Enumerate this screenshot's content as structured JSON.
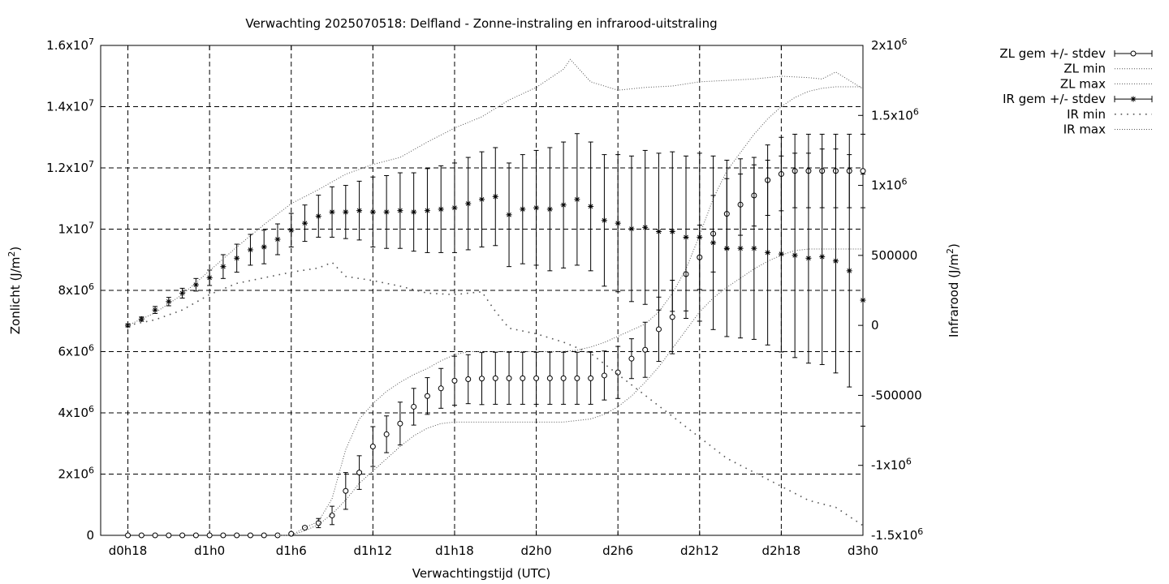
{
  "chart_data": {
    "type": "line",
    "title": "Verwachting 2025070518: Delfland - Zonne-instraling en infrarood-uitstraling",
    "xlabel": "Verwachtingstijd (UTC)",
    "ylabel_left": {
      "main": "Zonlicht (J/m",
      "sup": "2",
      "end": ")"
    },
    "ylabel_right": {
      "main": "Infrarood (J/m",
      "sup": "2",
      "end": ")"
    },
    "x_range_hours": [
      16,
      72
    ],
    "x_ticks": [
      {
        "h": 18,
        "label": "d0h18"
      },
      {
        "h": 24,
        "label": "d1h0"
      },
      {
        "h": 30,
        "label": "d1h6"
      },
      {
        "h": 36,
        "label": "d1h12"
      },
      {
        "h": 42,
        "label": "d1h18"
      },
      {
        "h": 48,
        "label": "d2h0"
      },
      {
        "h": 54,
        "label": "d2h6"
      },
      {
        "h": 60,
        "label": "d2h12"
      },
      {
        "h": 66,
        "label": "d2h18"
      },
      {
        "h": 72,
        "label": "d3h0"
      }
    ],
    "y_left_range": [
      0,
      16000000
    ],
    "y_left_ticks": [
      {
        "v": 0,
        "label": "0",
        "exp": ""
      },
      {
        "v": 2000000,
        "label": "2x10",
        "exp": "6"
      },
      {
        "v": 4000000,
        "label": "4x10",
        "exp": "6"
      },
      {
        "v": 6000000,
        "label": "6x10",
        "exp": "6"
      },
      {
        "v": 8000000,
        "label": "8x10",
        "exp": "6"
      },
      {
        "v": 10000000,
        "label": "1x10",
        "exp": "7"
      },
      {
        "v": 12000000,
        "label": "1.2x10",
        "exp": "7"
      },
      {
        "v": 14000000,
        "label": "1.4x10",
        "exp": "7"
      },
      {
        "v": 16000000,
        "label": "1.6x10",
        "exp": "7"
      }
    ],
    "y_right_range": [
      -1500000,
      2000000
    ],
    "y_right_ticks": [
      {
        "v": -1500000,
        "label": "-1.5x10",
        "exp": "6"
      },
      {
        "v": -1000000,
        "label": "-1x10",
        "exp": "6"
      },
      {
        "v": -500000,
        "label": "-500000",
        "exp": ""
      },
      {
        "v": 0,
        "label": "0",
        "exp": ""
      },
      {
        "v": 500000,
        "label": "500000",
        "exp": ""
      },
      {
        "v": 1000000,
        "label": "1x10",
        "exp": "6"
      },
      {
        "v": 1500000,
        "label": "1.5x10",
        "exp": "6"
      },
      {
        "v": 2000000,
        "label": "2x10",
        "exp": "6"
      }
    ],
    "grid": true,
    "legend_position": "outside-right",
    "series": [
      {
        "name": "ZL gem +/- stdev",
        "axis": "left",
        "style": "errorbar-circle",
        "x": [
          18,
          19,
          20,
          21,
          22,
          23,
          24,
          25,
          26,
          27,
          28,
          29,
          30,
          31,
          32,
          33,
          34,
          35,
          36,
          37,
          38,
          39,
          40,
          41,
          42,
          43,
          44,
          45,
          46,
          47,
          48,
          49,
          50,
          51,
          52,
          53,
          54,
          55,
          56,
          57,
          58,
          59,
          60,
          61,
          62,
          63,
          64,
          65,
          66,
          67,
          68,
          69,
          70,
          71,
          72
        ],
        "y": [
          0,
          0,
          0,
          0,
          0,
          0,
          0,
          0,
          0,
          0,
          0,
          0,
          50000,
          250000,
          400000,
          650000,
          1450000,
          2050000,
          2900000,
          3300000,
          3650000,
          4200000,
          4550000,
          4800000,
          5050000,
          5100000,
          5120000,
          5130000,
          5130000,
          5130000,
          5130000,
          5130000,
          5130000,
          5130000,
          5130000,
          5220000,
          5320000,
          5770000,
          6060000,
          6730000,
          7130000,
          8530000,
          9080000,
          9850000,
          10500000,
          10800000,
          11100000,
          11600000,
          11800000,
          11900000,
          11900000,
          11900000,
          11900000,
          11900000,
          11900000
        ],
        "err": [
          0,
          0,
          0,
          0,
          0,
          0,
          0,
          0,
          0,
          0,
          0,
          0,
          30000,
          50000,
          150000,
          300000,
          600000,
          550000,
          650000,
          600000,
          700000,
          600000,
          600000,
          650000,
          800000,
          800000,
          850000,
          850000,
          850000,
          850000,
          850000,
          850000,
          850000,
          850000,
          850000,
          800000,
          850000,
          650000,
          900000,
          1050000,
          1200000,
          1200000,
          1050000,
          1250000,
          1150000,
          1000000,
          1000000,
          1150000,
          1200000,
          1200000,
          1200000,
          1200000,
          1200000,
          1200000,
          1200000
        ]
      },
      {
        "name": "ZL min",
        "axis": "left",
        "style": "dotted",
        "x": [
          29,
          30,
          31,
          32,
          33,
          34,
          35,
          36,
          37,
          38,
          39,
          40,
          41,
          42,
          43,
          44,
          45,
          46,
          47,
          48,
          49,
          50,
          51,
          52,
          53,
          54,
          55,
          56,
          57,
          58,
          59,
          60,
          61,
          62,
          63,
          64,
          65,
          66,
          67,
          68,
          69,
          70,
          71,
          72
        ],
        "y": [
          0,
          0,
          150000,
          350000,
          700000,
          1150000,
          1700000,
          2100000,
          2500000,
          2900000,
          3250000,
          3500000,
          3650000,
          3700000,
          3700000,
          3700000,
          3700000,
          3700000,
          3700000,
          3700000,
          3700000,
          3700000,
          3750000,
          3800000,
          3950000,
          4200000,
          4550000,
          5000000,
          5500000,
          6100000,
          6700000,
          7300000,
          7750000,
          8100000,
          8400000,
          8700000,
          8950000,
          9150000,
          9300000,
          9350000,
          9350000,
          9350000,
          9350000,
          9350000
        ]
      },
      {
        "name": "ZL max",
        "axis": "left",
        "style": "dotted",
        "x": [
          29,
          30,
          31,
          32,
          33,
          34,
          35,
          36,
          37,
          38,
          39,
          40,
          41,
          42,
          43,
          44,
          45,
          46,
          47,
          48,
          49,
          50,
          51,
          52,
          53,
          54,
          55,
          56,
          57,
          58,
          59,
          60,
          61,
          62,
          63,
          64,
          65,
          66,
          67,
          68,
          69,
          70,
          71,
          72
        ],
        "y": [
          0,
          0,
          250000,
          450000,
          1200000,
          2800000,
          3800000,
          4300000,
          4700000,
          5000000,
          5250000,
          5450000,
          5700000,
          5900000,
          6000000,
          6000000,
          6000000,
          6000000,
          6000000,
          6000000,
          6000000,
          6000000,
          6050000,
          6150000,
          6300000,
          6500000,
          6700000,
          6900000,
          7300000,
          7900000,
          8700000,
          9800000,
          11000000,
          11900000,
          12500000,
          13100000,
          13600000,
          14000000,
          14300000,
          14500000,
          14600000,
          14650000,
          14650000,
          14650000
        ]
      },
      {
        "name": "IR gem +/- stdev",
        "axis": "right",
        "style": "errorbar-star",
        "x": [
          18,
          19,
          20,
          21,
          22,
          23,
          24,
          25,
          26,
          27,
          28,
          29,
          30,
          31,
          32,
          33,
          34,
          35,
          36,
          37,
          38,
          39,
          40,
          41,
          42,
          43,
          44,
          45,
          46,
          47,
          48,
          49,
          50,
          51,
          52,
          53,
          54,
          55,
          56,
          57,
          58,
          59,
          60,
          61,
          62,
          63,
          64,
          65,
          66,
          67,
          68,
          69,
          70,
          71,
          72
        ],
        "y": [
          0,
          45000,
          110000,
          170000,
          230000,
          290000,
          340000,
          420000,
          480000,
          540000,
          560000,
          615000,
          680000,
          730000,
          780000,
          810000,
          810000,
          820000,
          810000,
          810000,
          820000,
          810000,
          820000,
          830000,
          840000,
          870000,
          900000,
          920000,
          790000,
          830000,
          840000,
          830000,
          860000,
          900000,
          850000,
          750000,
          730000,
          690000,
          700000,
          670000,
          670000,
          630000,
          630000,
          590000,
          550000,
          550000,
          550000,
          520000,
          510000,
          500000,
          480000,
          490000,
          460000,
          390000,
          180000
        ],
        "err": [
          10000,
          15000,
          25000,
          30000,
          35000,
          45000,
          55000,
          85000,
          100000,
          110000,
          120000,
          110000,
          120000,
          130000,
          150000,
          180000,
          190000,
          210000,
          250000,
          260000,
          270000,
          280000,
          300000,
          310000,
          320000,
          330000,
          340000,
          350000,
          370000,
          390000,
          410000,
          440000,
          450000,
          470000,
          460000,
          470000,
          490000,
          520000,
          550000,
          560000,
          570000,
          580000,
          600000,
          620000,
          630000,
          640000,
          650000,
          660000,
          700000,
          730000,
          750000,
          770000,
          800000,
          830000,
          900000
        ]
      },
      {
        "name": "IR min",
        "axis": "right",
        "style": "sparse-dotted",
        "x": [
          18,
          20,
          22,
          24,
          26,
          28,
          30,
          32,
          33,
          34,
          36,
          38,
          40,
          42,
          44,
          45,
          46,
          48,
          50,
          52,
          54,
          56,
          58,
          60,
          62,
          64,
          66,
          68,
          70,
          72
        ],
        "y": [
          0,
          40000,
          110000,
          220000,
          300000,
          340000,
          380000,
          410000,
          450000,
          350000,
          320000,
          280000,
          230000,
          220000,
          240000,
          100000,
          -20000,
          -60000,
          -120000,
          -200000,
          -350000,
          -500000,
          -650000,
          -800000,
          -950000,
          -1050000,
          -1150000,
          -1250000,
          -1300000,
          -1430000
        ]
      },
      {
        "name": "IR max",
        "axis": "right",
        "style": "dotted",
        "x": [
          18,
          20,
          22,
          24,
          26,
          28,
          30,
          32,
          34,
          36,
          38,
          40,
          42,
          44,
          46,
          48,
          50,
          50.5,
          52,
          54,
          56,
          58,
          60,
          62,
          64,
          66,
          68,
          69,
          70,
          71,
          72
        ],
        "y": [
          0,
          90000,
          220000,
          390000,
          560000,
          720000,
          870000,
          970000,
          1080000,
          1150000,
          1200000,
          1310000,
          1410000,
          1490000,
          1610000,
          1700000,
          1830000,
          1900000,
          1740000,
          1680000,
          1700000,
          1710000,
          1740000,
          1750000,
          1760000,
          1780000,
          1770000,
          1760000,
          1810000,
          1750000,
          1690000
        ]
      }
    ]
  }
}
